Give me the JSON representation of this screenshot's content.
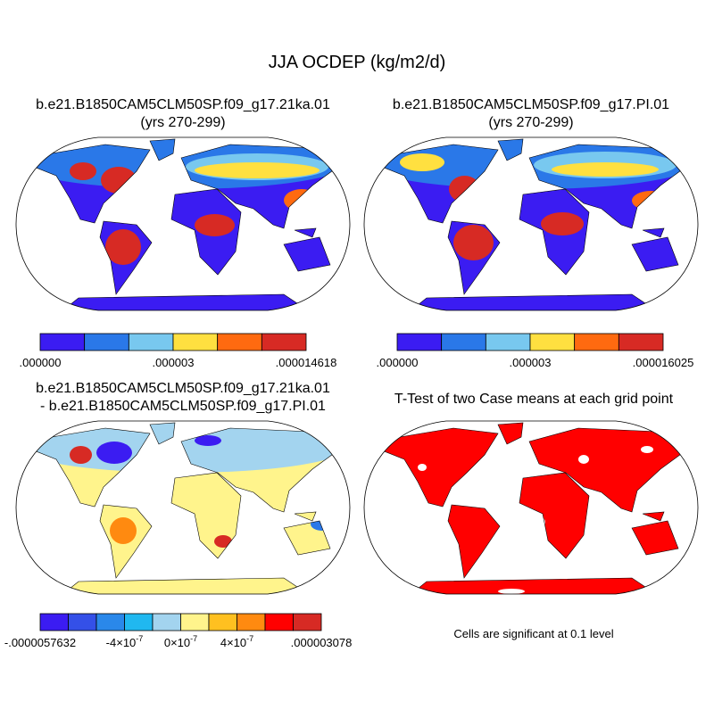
{
  "title": "JJA OCDEP (kg/m2/d)",
  "panels": [
    {
      "title": [
        "b.e21.B1850CAM5CLM50SP.f09_g17.21ka.01",
        "(yrs 270-299)"
      ],
      "colorbar_labels": [
        ".000000",
        ".000003",
        ".000014618"
      ]
    },
    {
      "title": [
        "b.e21.B1850CAM5CLM50SP.f09_g17.PI.01",
        "(yrs 270-299)"
      ],
      "colorbar_labels": [
        ".000000",
        ".000003",
        ".000016025"
      ]
    },
    {
      "title": [
        "b.e21.B1850CAM5CLM50SP.f09_g17.21ka.01",
        "- b.e21.B1850CAM5CLM50SP.f09_g17.PI.01"
      ],
      "colorbar_labels": [
        "-.0000057632",
        {
          "text": "-4×10",
          "sup": "-7"
        },
        {
          "text": "0×10",
          "sup": "-7"
        },
        {
          "text": "4×10",
          "sup": "-7"
        },
        ".000003078"
      ]
    },
    {
      "title": [
        "T-Test of two Case means at each grid point"
      ],
      "note": "Cells are significant at 0.1 level"
    }
  ]
}
